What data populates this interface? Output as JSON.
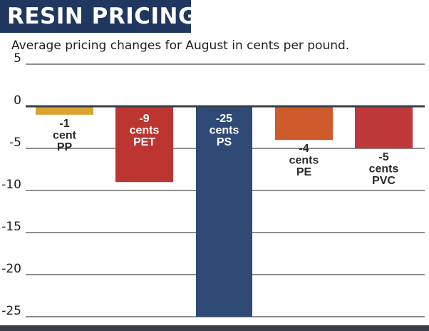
{
  "header": {
    "title": "RESIN PRICING",
    "subtitle": "Average pricing changes for August in cents per pound."
  },
  "colors": {
    "banner": "#20375f",
    "grid": "#1e1e1e",
    "zero_line": "#3a3f47"
  },
  "chart_data": {
    "type": "bar",
    "categories": [
      "PP",
      "PET",
      "PS",
      "PE",
      "PVC"
    ],
    "values": [
      -1,
      -9,
      -25,
      -4,
      -5
    ],
    "value_labels": [
      "-1",
      "-9",
      "-25",
      "-4",
      "-5"
    ],
    "unit_labels": [
      "cent",
      "cents",
      "cents",
      "cents",
      "cents"
    ],
    "colors": [
      "#dba32e",
      "#bd3531",
      "#2e4a75",
      "#cf5a2c",
      "#c0393a"
    ],
    "ylim": [
      -25,
      5
    ],
    "yticks": [
      5,
      0,
      -5,
      -10,
      -15,
      -20,
      -25
    ],
    "ytick_labels": [
      "5",
      "0",
      "-5",
      "-10",
      "-15",
      "-20",
      "-25"
    ],
    "grid": true,
    "title": "RESIN PRICING",
    "subtitle": "Average pricing changes for August in cents per pound.",
    "xlabel": "",
    "ylabel": ""
  }
}
